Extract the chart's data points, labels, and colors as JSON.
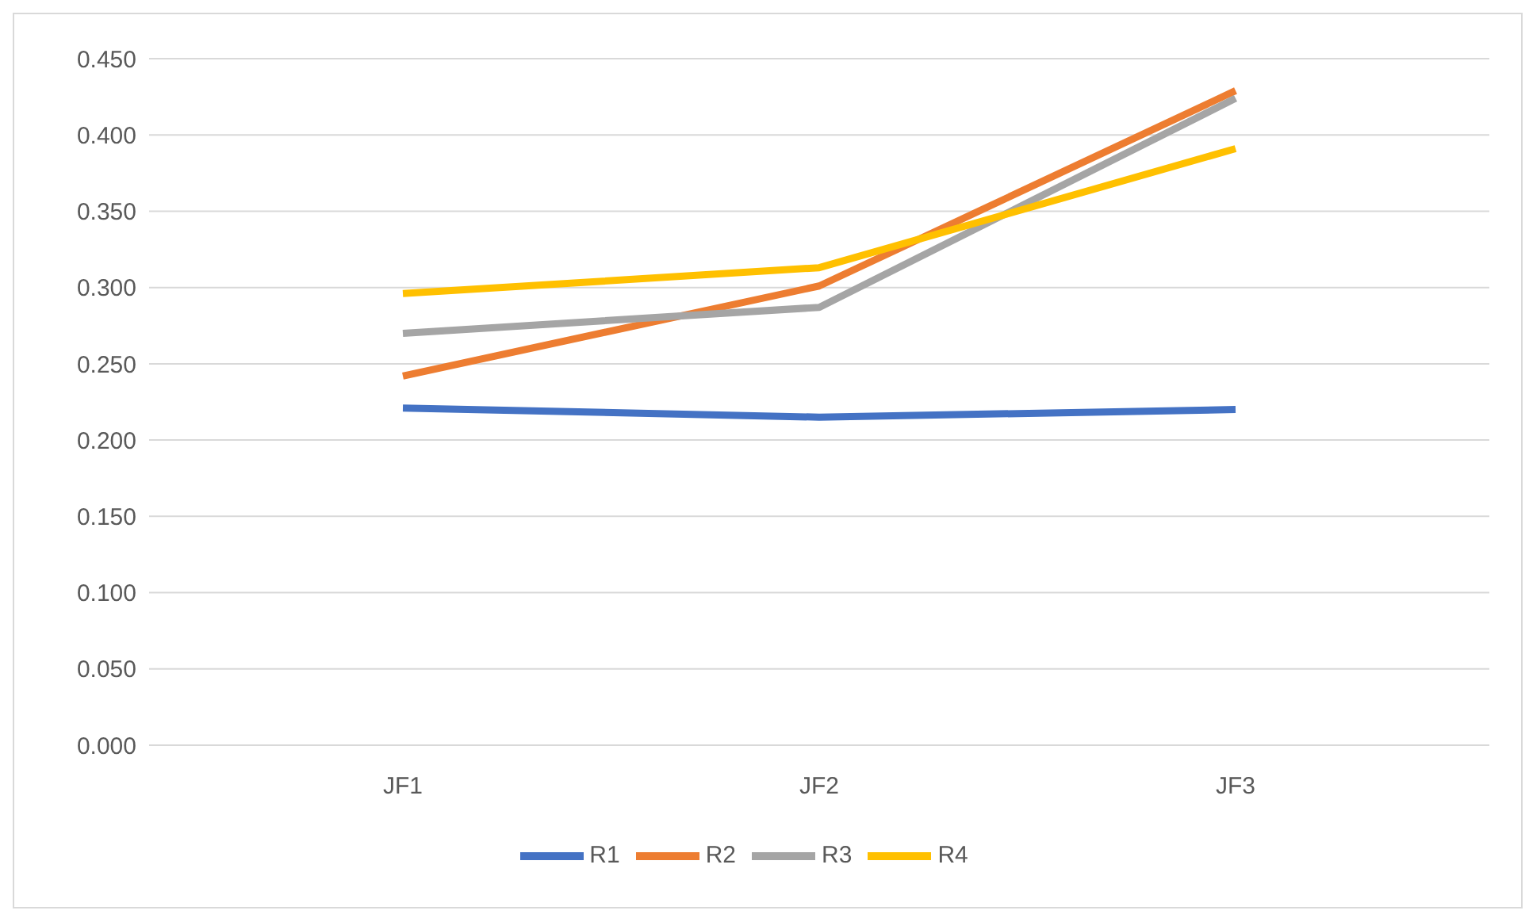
{
  "chart_data": {
    "type": "line",
    "categories": [
      "JF1",
      "JF2",
      "JF3"
    ],
    "series": [
      {
        "name": "R1",
        "color": "#4472c4",
        "values": [
          0.221,
          0.215,
          0.22
        ]
      },
      {
        "name": "R2",
        "color": "#ed7d31",
        "values": [
          0.242,
          0.301,
          0.429
        ]
      },
      {
        "name": "R3",
        "color": "#a5a5a5",
        "values": [
          0.27,
          0.287,
          0.424
        ]
      },
      {
        "name": "R4",
        "color": "#ffc000",
        "values": [
          0.296,
          0.313,
          0.391
        ]
      }
    ],
    "ylim": [
      0,
      0.45
    ],
    "yticks": [
      {
        "value": 0,
        "label": "0.000"
      },
      {
        "value": 0.05,
        "label": "0.050"
      },
      {
        "value": 0.1,
        "label": "0.100"
      },
      {
        "value": 0.15,
        "label": "0.150"
      },
      {
        "value": 0.2,
        "label": "0.200"
      },
      {
        "value": 0.25,
        "label": "0.250"
      },
      {
        "value": 0.3,
        "label": "0.300"
      },
      {
        "value": 0.35,
        "label": "0.350"
      },
      {
        "value": 0.4,
        "label": "0.400"
      },
      {
        "value": 0.45,
        "label": "0.450"
      }
    ],
    "grid": "y",
    "legend": "bottom",
    "marker": "none",
    "line_style": "solid"
  }
}
